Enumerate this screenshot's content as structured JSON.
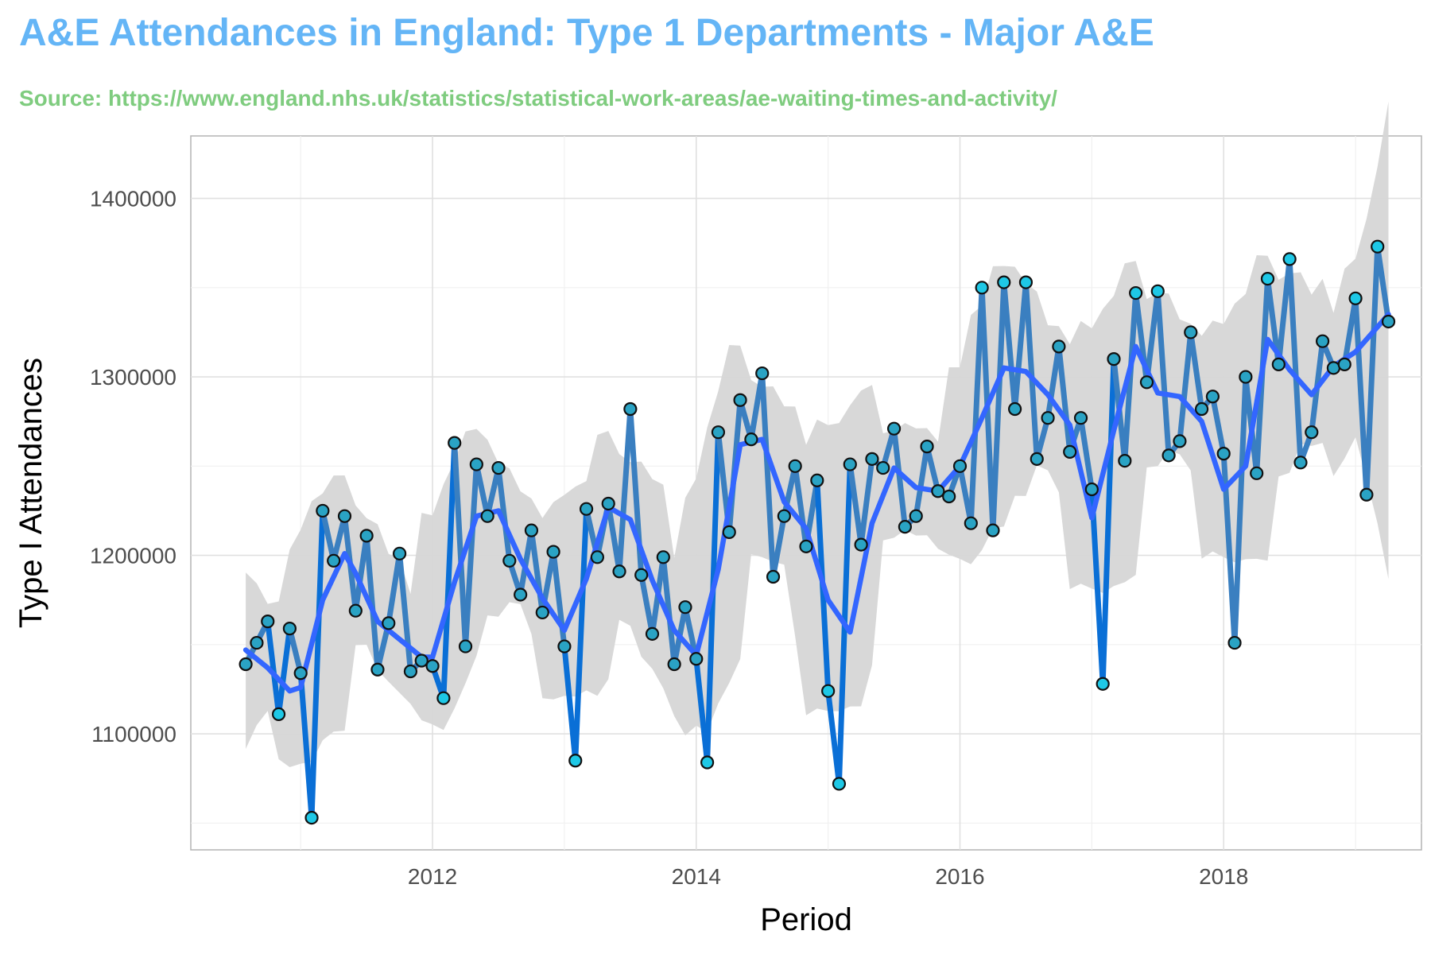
{
  "title": "A&E Attendances in England: Type 1 Departments - Major A&E",
  "subtitle": "Source: https://www.england.nhs.uk/statistics/statistical-work-areas/ae-waiting-times-and-activity/",
  "colors": {
    "title": "#64b5f6",
    "subtitle": "#7fcc7f",
    "line": "#3a7fc0",
    "dip_segment": "#0a6fd6",
    "smooth": "#3366ff",
    "ribbon": "#d6d6d6",
    "point_fill": "#2aa3c4",
    "point_highlight": "#1ec8e6",
    "point_stroke": "#111111"
  },
  "chart_data": {
    "type": "line",
    "xlabel": "Period",
    "ylabel": "Type I Attendances",
    "x_ticks": [
      "2012",
      "2014",
      "2016",
      "2018"
    ],
    "y_ticks": [
      "1100000",
      "1200000",
      "1300000",
      "1400000"
    ],
    "xlim": [
      "2010-03",
      "2019-07"
    ],
    "ylim": [
      1035000,
      1435000
    ],
    "grid": true,
    "series": [
      {
        "type": "line_with_points",
        "x": [
          "2010-08",
          "2010-09",
          "2010-10",
          "2010-11",
          "2010-12",
          "2011-01",
          "2011-02",
          "2011-03",
          "2011-04",
          "2011-05",
          "2011-06",
          "2011-07",
          "2011-08",
          "2011-09",
          "2011-10",
          "2011-11",
          "2011-12",
          "2012-01",
          "2012-02",
          "2012-03",
          "2012-04",
          "2012-05",
          "2012-06",
          "2012-07",
          "2012-08",
          "2012-09",
          "2012-10",
          "2012-11",
          "2012-12",
          "2013-01",
          "2013-02",
          "2013-03",
          "2013-04",
          "2013-05",
          "2013-06",
          "2013-07",
          "2013-08",
          "2013-09",
          "2013-10",
          "2013-11",
          "2013-12",
          "2014-01",
          "2014-02",
          "2014-03",
          "2014-04",
          "2014-05",
          "2014-06",
          "2014-07",
          "2014-08",
          "2014-09",
          "2014-10",
          "2014-11",
          "2014-12",
          "2015-01",
          "2015-02",
          "2015-03",
          "2015-04",
          "2015-05",
          "2015-06",
          "2015-07",
          "2015-08",
          "2015-09",
          "2015-10",
          "2015-11",
          "2015-12",
          "2016-01",
          "2016-02",
          "2016-03",
          "2016-04",
          "2016-05",
          "2016-06",
          "2016-07",
          "2016-08",
          "2016-09",
          "2016-10",
          "2016-11",
          "2016-12",
          "2017-01",
          "2017-02",
          "2017-03",
          "2017-04",
          "2017-05",
          "2017-06",
          "2017-07",
          "2017-08",
          "2017-09",
          "2017-10",
          "2017-11",
          "2017-12",
          "2018-01",
          "2018-02",
          "2018-03",
          "2018-04",
          "2018-05",
          "2018-06",
          "2018-07",
          "2018-08",
          "2018-09",
          "2018-10",
          "2018-11",
          "2018-12",
          "2019-01",
          "2019-02",
          "2019-03",
          "2019-04"
        ],
        "values": [
          1139000,
          1151000,
          1163000,
          1111000,
          1159000,
          1134000,
          1053000,
          1225000,
          1197000,
          1222000,
          1169000,
          1211000,
          1136000,
          1162000,
          1201000,
          1135000,
          1141000,
          1138000,
          1120000,
          1263000,
          1149000,
          1251000,
          1222000,
          1249000,
          1197000,
          1178000,
          1214000,
          1168000,
          1202000,
          1149000,
          1085000,
          1226000,
          1199000,
          1229000,
          1191000,
          1282000,
          1189000,
          1156000,
          1199000,
          1139000,
          1171000,
          1142000,
          1084000,
          1269000,
          1213000,
          1287000,
          1265000,
          1302000,
          1188000,
          1222000,
          1250000,
          1205000,
          1242000,
          1124000,
          1072000,
          1251000,
          1206000,
          1254000,
          1249000,
          1271000,
          1216000,
          1222000,
          1261000,
          1236000,
          1233000,
          1250000,
          1218000,
          1350000,
          1214000,
          1353000,
          1282000,
          1353000,
          1254000,
          1277000,
          1317000,
          1258000,
          1277000,
          1237000,
          1128000,
          1310000,
          1253000,
          1347000,
          1297000,
          1348000,
          1256000,
          1264000,
          1325000,
          1282000,
          1289000,
          1257000,
          1151000,
          1300000,
          1246000,
          1355000,
          1307000,
          1366000,
          1252000,
          1269000,
          1320000,
          1305000,
          1307000,
          1344000,
          1234000,
          1373000,
          1331000
        ]
      },
      {
        "type": "smooth",
        "x": [
          "2010-08",
          "2010-10",
          "2010-12",
          "2011-01",
          "2011-03",
          "2011-05",
          "2011-06",
          "2011-08",
          "2011-10",
          "2011-12",
          "2012-01",
          "2012-03",
          "2012-05",
          "2012-07",
          "2012-09",
          "2012-11",
          "2013-01",
          "2013-03",
          "2013-05",
          "2013-07",
          "2013-09",
          "2013-11",
          "2014-01",
          "2014-03",
          "2014-05",
          "2014-07",
          "2014-09",
          "2014-11",
          "2015-01",
          "2015-03",
          "2015-05",
          "2015-07",
          "2015-09",
          "2015-11",
          "2016-01",
          "2016-03",
          "2016-05",
          "2016-07",
          "2016-09",
          "2016-11",
          "2017-01",
          "2017-03",
          "2017-05",
          "2017-07",
          "2017-09",
          "2017-11",
          "2018-01",
          "2018-03",
          "2018-05",
          "2018-07",
          "2018-09",
          "2018-11",
          "2019-01",
          "2019-04"
        ],
        "values": [
          1147000,
          1137000,
          1124000,
          1126000,
          1175000,
          1201000,
          1190000,
          1163000,
          1153000,
          1143000,
          1143000,
          1185000,
          1222000,
          1225000,
          1198000,
          1176000,
          1158000,
          1187000,
          1227000,
          1220000,
          1186000,
          1158000,
          1144000,
          1192000,
          1262000,
          1265000,
          1230000,
          1215000,
          1175000,
          1157000,
          1218000,
          1249000,
          1238000,
          1236000,
          1250000,
          1277000,
          1305000,
          1303000,
          1290000,
          1273000,
          1221000,
          1270000,
          1317000,
          1291000,
          1289000,
          1275000,
          1237000,
          1250000,
          1321000,
          1304000,
          1290000,
          1306000,
          1314000,
          1335000
        ]
      }
    ]
  }
}
